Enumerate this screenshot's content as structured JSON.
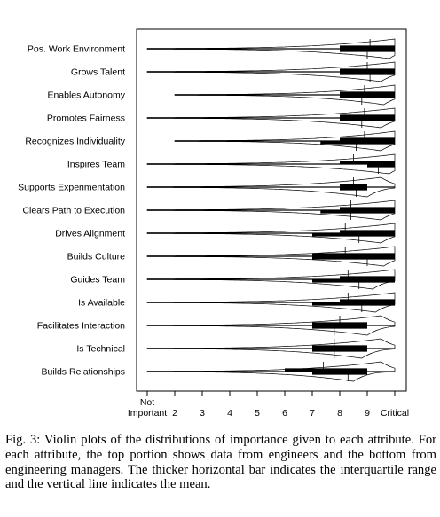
{
  "chart_data": {
    "type": "violin",
    "x_tick_labels": [
      "Not\nImportant",
      "2",
      "3",
      "4",
      "5",
      "6",
      "7",
      "8",
      "9",
      "Critical"
    ],
    "xlim": [
      1,
      10
    ],
    "grid": false,
    "top_half": "engineers",
    "bottom_half": "engineering managers",
    "attributes": [
      {
        "label": "Pos. Work Environment",
        "engineers": {
          "min": 1,
          "q1": 8,
          "q3": 10,
          "mean": 9.1,
          "peak": 10
        },
        "managers": {
          "min": 1,
          "q1": 8,
          "q3": 10,
          "mean": 9.0,
          "peak": 9.8
        }
      },
      {
        "label": "Grows Talent",
        "engineers": {
          "min": 1,
          "q1": 8,
          "q3": 10,
          "mean": 9.0,
          "peak": 10
        },
        "managers": {
          "min": 1,
          "q1": 8,
          "q3": 10,
          "mean": 9.1,
          "peak": 9.5
        }
      },
      {
        "label": "Enables Autonomy",
        "engineers": {
          "min": 2,
          "q1": 8,
          "q3": 10,
          "mean": 8.9,
          "peak": 10
        },
        "managers": {
          "min": 2,
          "q1": 8,
          "q3": 10,
          "mean": 8.8,
          "peak": 9.6
        }
      },
      {
        "label": "Promotes Fairness",
        "engineers": {
          "min": 1,
          "q1": 8,
          "q3": 10,
          "mean": 8.9,
          "peak": 10
        },
        "managers": {
          "min": 1,
          "q1": 8,
          "q3": 10,
          "mean": 8.8,
          "peak": 9.5
        }
      },
      {
        "label": "Recognizes Individuality",
        "engineers": {
          "min": 2,
          "q1": 8,
          "q3": 10,
          "mean": 8.9,
          "peak": 10
        },
        "managers": {
          "min": 2,
          "q1": 7.3,
          "q3": 10,
          "mean": 8.6,
          "peak": 9.5
        }
      },
      {
        "label": "Inspires Team",
        "engineers": {
          "min": 1,
          "q1": 8,
          "q3": 10,
          "mean": 8.5,
          "peak": 10
        },
        "managers": {
          "min": 1,
          "q1": 9,
          "q3": 10,
          "mean": 9.4,
          "peak": 9.8
        }
      },
      {
        "label": "Supports Experimentation",
        "engineers": {
          "min": 1,
          "q1": 8,
          "q3": 9,
          "mean": 8.5,
          "peak": 9.5
        },
        "managers": {
          "min": 1,
          "q1": 8,
          "q3": 9,
          "mean": 8.6,
          "peak": 9.0
        }
      },
      {
        "label": "Clears Path to Execution",
        "engineers": {
          "min": 1,
          "q1": 8,
          "q3": 10,
          "mean": 8.4,
          "peak": 10
        },
        "managers": {
          "min": 1,
          "q1": 7.3,
          "q3": 10,
          "mean": 8.4,
          "peak": 9.5
        }
      },
      {
        "label": "Drives Alignment",
        "engineers": {
          "min": 1,
          "q1": 8,
          "q3": 10,
          "mean": 8.2,
          "peak": 10
        },
        "managers": {
          "min": 1,
          "q1": 7,
          "q3": 10,
          "mean": 8.7,
          "peak": 9.5
        }
      },
      {
        "label": "Builds Culture",
        "engineers": {
          "min": 1,
          "q1": 7,
          "q3": 10,
          "mean": 8.2,
          "peak": 10
        },
        "managers": {
          "min": 1,
          "q1": 7,
          "q3": 10,
          "mean": 9.0,
          "peak": 9.6
        }
      },
      {
        "label": "Guides Team",
        "engineers": {
          "min": 1,
          "q1": 8,
          "q3": 10,
          "mean": 8.3,
          "peak": 10
        },
        "managers": {
          "min": 1,
          "q1": 7,
          "q3": 10,
          "mean": 8.7,
          "peak": 9.2
        }
      },
      {
        "label": "Is Available",
        "engineers": {
          "min": 1,
          "q1": 8,
          "q3": 10,
          "mean": 8.3,
          "peak": 10
        },
        "managers": {
          "min": 1,
          "q1": 7,
          "q3": 10,
          "mean": 8.8,
          "peak": 9.3
        }
      },
      {
        "label": "Facilitates Interaction",
        "engineers": {
          "min": 1,
          "q1": 7,
          "q3": 9,
          "mean": 8.0,
          "peak": 9.5
        },
        "managers": {
          "min": 1,
          "q1": 7,
          "q3": 9,
          "mean": 7.8,
          "peak": 9.0
        }
      },
      {
        "label": "Is Technical",
        "engineers": {
          "min": 1,
          "q1": 7,
          "q3": 9,
          "mean": 7.8,
          "peak": 9.5
        },
        "managers": {
          "min": 1,
          "q1": 7,
          "q3": 9,
          "mean": 7.8,
          "peak": 8.8
        }
      },
      {
        "label": "Builds Relationships",
        "engineers": {
          "min": 1,
          "q1": 6,
          "q3": 9,
          "mean": 7.4,
          "peak": 9.5
        },
        "managers": {
          "min": 1,
          "q1": 7,
          "q3": 9,
          "mean": 8.3,
          "peak": 8.5
        }
      }
    ]
  },
  "caption": "Fig. 3: Violin plots of the distributions of importance given to each attribute. For each attribute, the top portion shows data from engineers and the bottom from engineering managers. The thicker horizontal bar indicates the interquartile range and the vertical line indicates the mean."
}
